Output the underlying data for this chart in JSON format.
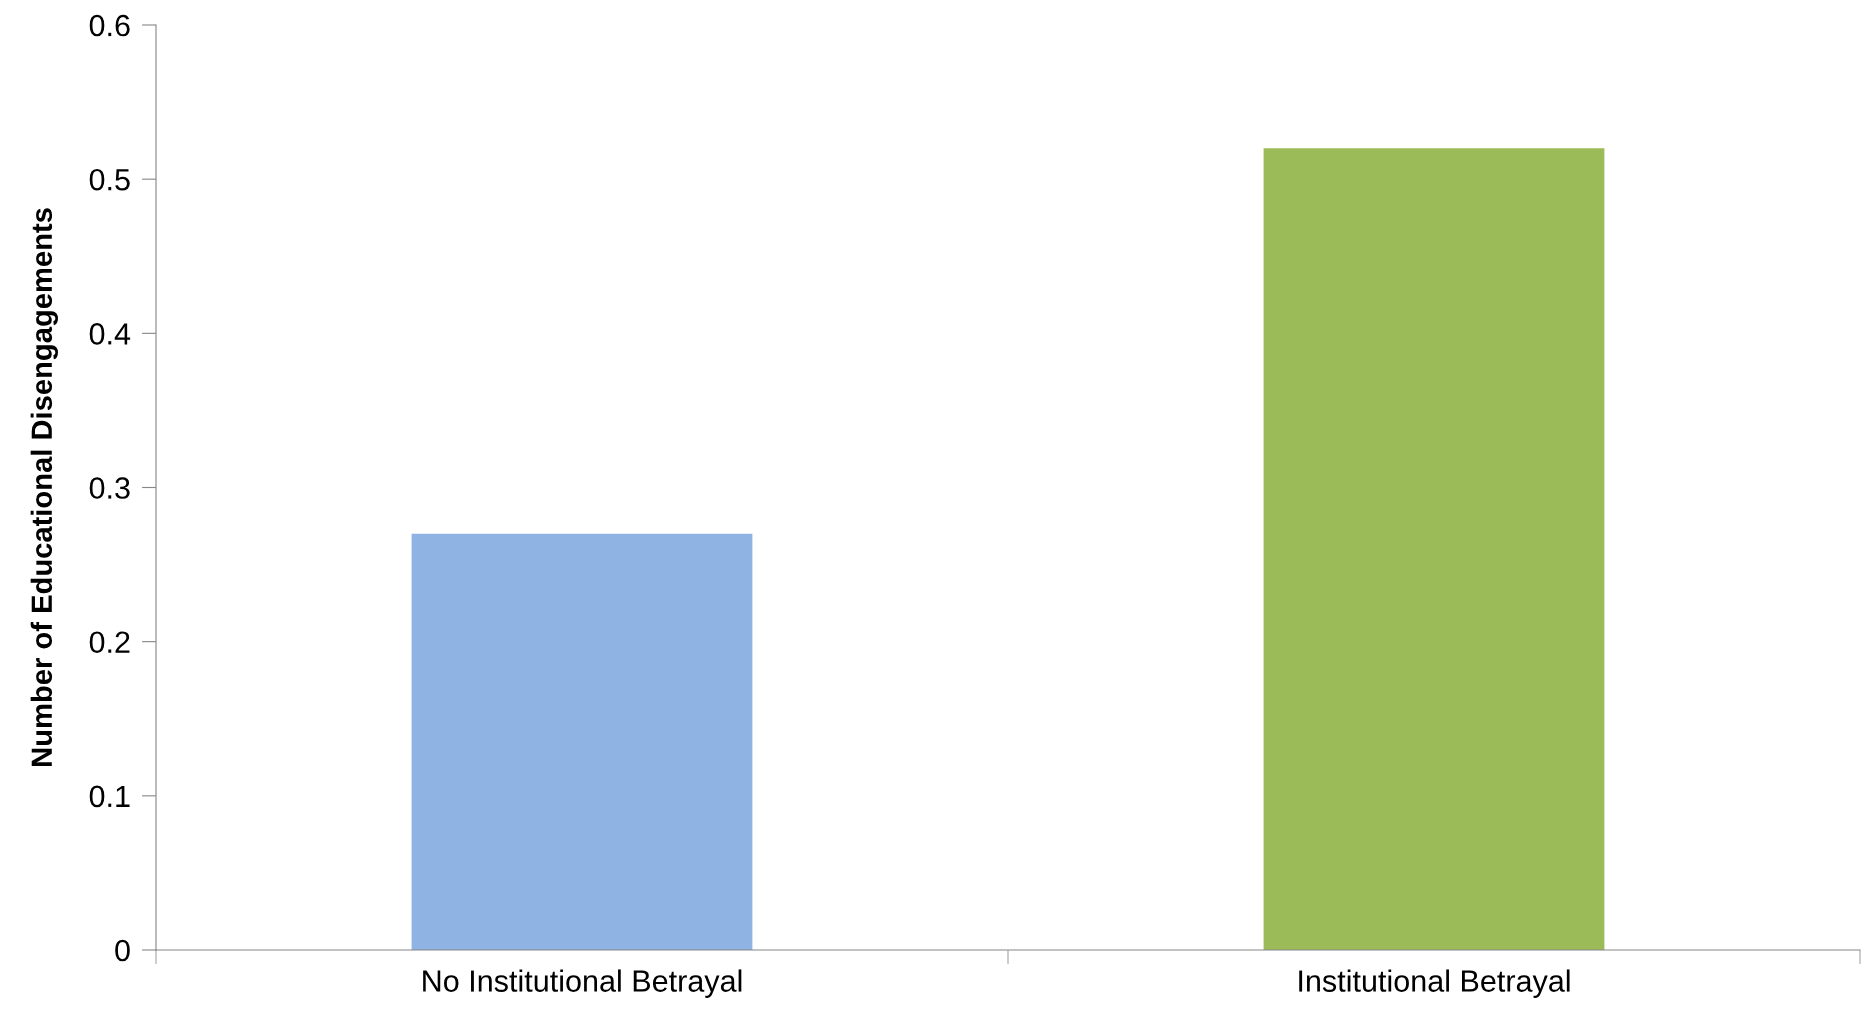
{
  "chart_data": {
    "type": "bar",
    "ylabel": "Number of Educational Disengagements",
    "categories": [
      "No Institutional Betrayal",
      "Institutional Betrayal"
    ],
    "values": [
      0.27,
      0.52
    ],
    "colors": [
      "#8fb3e2",
      "#9bbb59"
    ],
    "ylim": [
      0,
      0.6
    ],
    "yticks": [
      {
        "value": 0,
        "label": "0"
      },
      0.1,
      0.2,
      0.3,
      0.4,
      0.5,
      0.6
    ],
    "grid": false
  }
}
